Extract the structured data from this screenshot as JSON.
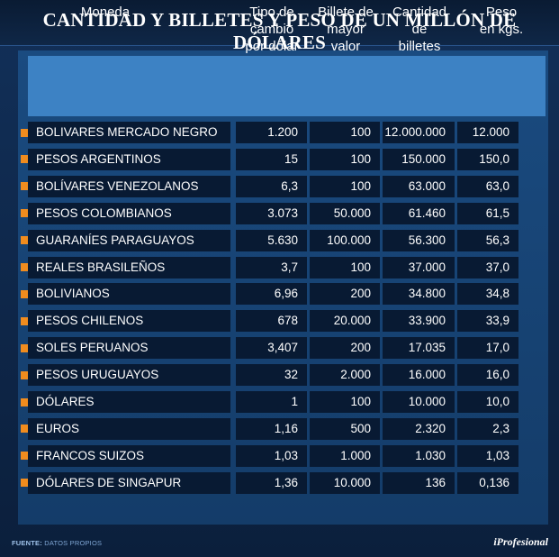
{
  "chart_data": {
    "type": "table",
    "title": "CANTIDAD Y BILLETES Y PESO DE UN MILLÓN DE DÓLARES",
    "columns": [
      {
        "lines": [
          "Moneda"
        ]
      },
      {
        "lines": [
          "Tipo de",
          "cambio",
          "por dólar"
        ]
      },
      {
        "lines": [
          "Billete de",
          "mayor",
          "valor"
        ]
      },
      {
        "lines": [
          "Cantidad",
          "de",
          "billetes"
        ]
      },
      {
        "lines": [
          "Peso",
          "en kgs."
        ]
      }
    ],
    "rows": [
      [
        "BOLIVARES MERCADO NEGRO",
        "1.200",
        "100",
        "12.000.000",
        "12.000"
      ],
      [
        "PESOS ARGENTINOS",
        "15",
        "100",
        "150.000",
        "150,0"
      ],
      [
        "BOLÍVARES VENEZOLANOS",
        "6,3",
        "100",
        "63.000",
        "63,0"
      ],
      [
        "PESOS COLOMBIANOS",
        "3.073",
        "50.000",
        "61.460",
        "61,5"
      ],
      [
        "GUARANÍES PARAGUAYOS",
        "5.630",
        "100.000",
        "56.300",
        "56,3"
      ],
      [
        "REALES BRASILEÑOS",
        "3,7",
        "100",
        "37.000",
        "37,0"
      ],
      [
        "BOLIVIANOS",
        "6,96",
        "200",
        "34.800",
        "34,8"
      ],
      [
        "PESOS CHILENOS",
        "678",
        "20.000",
        "33.900",
        "33,9"
      ],
      [
        "SOLES PERUANOS",
        "3,407",
        "200",
        "17.035",
        "17,0"
      ],
      [
        "PESOS URUGUAYOS",
        "32",
        "2.000",
        "16.000",
        "16,0"
      ],
      [
        "DÓLARES",
        "1",
        "100",
        "10.000",
        "10,0"
      ],
      [
        "EUROS",
        "1,16",
        "500",
        "2.320",
        "2,3"
      ],
      [
        "FRANCOS SUIZOS",
        "1,03",
        "1.000",
        "1.030",
        "1,03"
      ],
      [
        "DÓLARES DE SINGAPUR",
        "1,36",
        "10.000",
        "136",
        "0,136"
      ]
    ],
    "colors": {
      "background": "#0d2240",
      "header": "#3d82c4",
      "cell": "#081a33",
      "bullet": "#f08c1e"
    }
  },
  "footer": {
    "source_label": "FUENTE:",
    "source_text": "DATOS PROPIOS",
    "brand": "iProfesional"
  }
}
